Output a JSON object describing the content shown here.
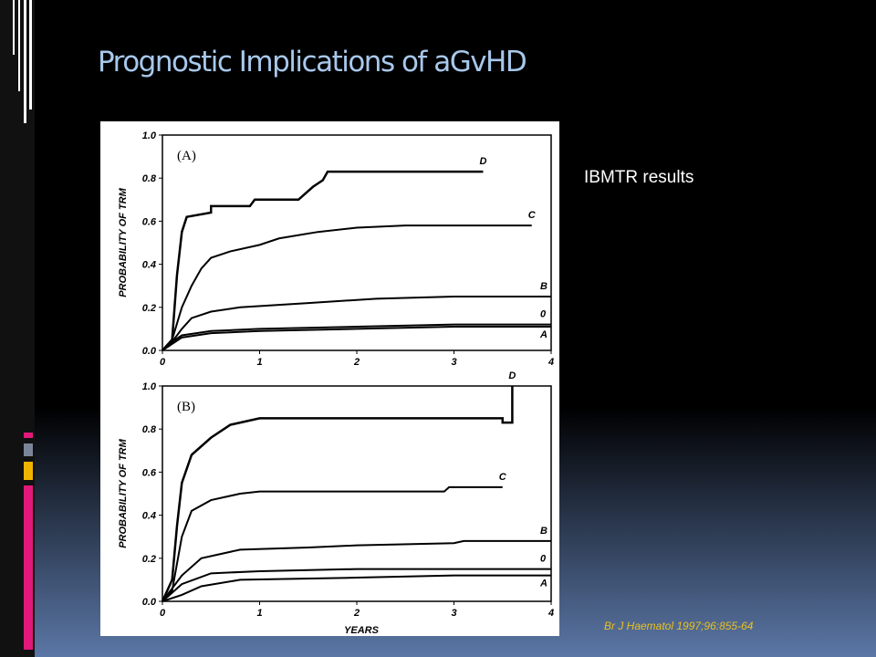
{
  "slide": {
    "title": "Prognostic Implications of aGvHD",
    "note": "IBMTR results",
    "citation": "Br J Haematol 1997;96:855-64"
  },
  "chart_data": [
    {
      "type": "line",
      "panel_label": "(A)",
      "ylabel": "PROBABILITY OF TRM",
      "xlim": [
        0,
        4
      ],
      "ylim": [
        0,
        1
      ],
      "xticks": [
        0,
        1,
        2,
        3,
        4
      ],
      "yticks": [
        {
          "value": 0,
          "label": "0.0"
        },
        0.2,
        0.4,
        0.6,
        0.8,
        {
          "value": 1,
          "label": "1.0"
        }
      ],
      "series": [
        {
          "name": "D",
          "color": "#000000",
          "x": [
            0,
            0.1,
            0.15,
            0.2,
            0.25,
            0.5,
            0.5,
            0.9,
            0.95,
            1.4,
            1.45,
            1.55,
            1.65,
            1.7,
            2.5,
            3.3
          ],
          "values": [
            0,
            0.05,
            0.35,
            0.55,
            0.62,
            0.64,
            0.67,
            0.67,
            0.7,
            0.7,
            0.72,
            0.76,
            0.79,
            0.83,
            0.83,
            0.83
          ]
        },
        {
          "name": "C",
          "color": "#000000",
          "x": [
            0,
            0.1,
            0.2,
            0.3,
            0.4,
            0.5,
            0.7,
            1.0,
            1.2,
            1.6,
            2.0,
            2.5,
            3.8
          ],
          "values": [
            0,
            0.05,
            0.2,
            0.3,
            0.38,
            0.43,
            0.46,
            0.49,
            0.52,
            0.55,
            0.57,
            0.58,
            0.58
          ]
        },
        {
          "name": "B",
          "color": "#000000",
          "x": [
            0,
            0.1,
            0.2,
            0.3,
            0.5,
            0.8,
            1.5,
            2.2,
            3.0,
            4.0
          ],
          "values": [
            0,
            0.04,
            0.1,
            0.15,
            0.18,
            0.2,
            0.22,
            0.24,
            0.25,
            0.25
          ]
        },
        {
          "name": "0",
          "color": "#000000",
          "x": [
            0,
            0.1,
            0.2,
            0.5,
            1.0,
            2.0,
            3.0,
            4.0
          ],
          "values": [
            0,
            0.04,
            0.07,
            0.09,
            0.1,
            0.11,
            0.12,
            0.12
          ]
        },
        {
          "name": "A",
          "color": "#000000",
          "x": [
            0,
            0.2,
            0.5,
            1.0,
            2.0,
            3.0,
            4.0
          ],
          "values": [
            0,
            0.06,
            0.08,
            0.09,
            0.1,
            0.11,
            0.11
          ]
        }
      ]
    },
    {
      "type": "line",
      "panel_label": "(B)",
      "ylabel": "PROBABILITY OF TRM",
      "xlabel": "YEARS",
      "xlim": [
        0,
        4
      ],
      "ylim": [
        0,
        1
      ],
      "xticks": [
        0,
        1,
        2,
        3,
        4
      ],
      "yticks": [
        {
          "value": 0,
          "label": "0.0"
        },
        0.2,
        0.4,
        0.6,
        0.8,
        {
          "value": 1,
          "label": "1.0"
        }
      ],
      "series": [
        {
          "name": "D",
          "color": "#000000",
          "x": [
            0,
            0.1,
            0.15,
            0.2,
            0.3,
            0.5,
            0.7,
            1.0,
            3.5,
            3.5,
            3.6,
            3.6
          ],
          "values": [
            0,
            0.1,
            0.35,
            0.55,
            0.68,
            0.76,
            0.82,
            0.85,
            0.85,
            0.83,
            0.83,
            1.0
          ]
        },
        {
          "name": "C",
          "color": "#000000",
          "x": [
            0,
            0.1,
            0.2,
            0.3,
            0.5,
            0.8,
            1.0,
            2.9,
            2.95,
            3.5
          ],
          "values": [
            0,
            0.05,
            0.3,
            0.42,
            0.47,
            0.5,
            0.51,
            0.51,
            0.53,
            0.53
          ]
        },
        {
          "name": "B",
          "color": "#000000",
          "x": [
            0,
            0.2,
            0.4,
            0.8,
            1.5,
            2.0,
            3.0,
            3.1,
            4.0
          ],
          "values": [
            0,
            0.12,
            0.2,
            0.24,
            0.25,
            0.26,
            0.27,
            0.28,
            0.28
          ]
        },
        {
          "name": "0",
          "color": "#000000",
          "x": [
            0,
            0.2,
            0.5,
            1.0,
            2.0,
            3.0,
            4.0
          ],
          "values": [
            0,
            0.08,
            0.13,
            0.14,
            0.15,
            0.15,
            0.15
          ]
        },
        {
          "name": "A",
          "color": "#000000",
          "x": [
            0,
            0.2,
            0.4,
            0.8,
            2.0,
            3.0,
            4.0
          ],
          "values": [
            0,
            0.03,
            0.07,
            0.1,
            0.11,
            0.12,
            0.12
          ]
        }
      ]
    }
  ]
}
